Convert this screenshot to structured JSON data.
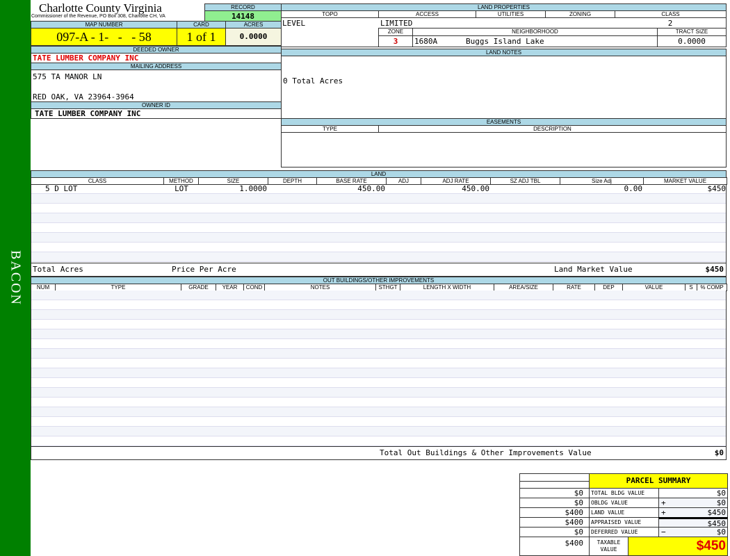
{
  "sidebar": {
    "name": "BACON",
    "color": "#008000"
  },
  "header": {
    "county": "Charlotte County Virginia",
    "subtitle": "Commissioner of the Revenue, PO Box 308, Charlotte CH, VA"
  },
  "record": {
    "label": "RECORD",
    "value": "14148"
  },
  "map": {
    "label": "MAP NUMBER",
    "value": "097-A - 1-   -   - 58",
    "card_label": "CARD",
    "card": "1 of 1",
    "acres_label": "ACRES",
    "acres": "0.0000"
  },
  "owner": {
    "deeded_label": "DEEDED OWNER",
    "deeded": "TATE LUMBER COMPANY INC",
    "mailing_label": "MAILING ADDRESS",
    "address1": "575 TA MANOR LN",
    "address2": "RED OAK, VA 23964-3964",
    "id_label": "OWNER ID",
    "id": "TATE LUMBER COMPANY INC"
  },
  "land_properties": {
    "title": "LAND PROPERTIES",
    "topo_label": "TOPO",
    "access_label": "ACCESS",
    "utilities_label": "UTILITIES",
    "zoning_label": "ZONING",
    "class_label": "CLASS",
    "topo": "LEVEL",
    "access": "LIMITED",
    "class": "2",
    "zone_label": "ZONE",
    "neighborhood_label": "NEIGHBORHOOD",
    "tract_label": "TRACT SIZE",
    "zone": "3",
    "neighborhood_code": "1680A",
    "neighborhood": "Buggs Island Lake",
    "tract": "0.0000"
  },
  "land_notes": {
    "title": "LAND NOTES",
    "text": "0 Total Acres"
  },
  "easements": {
    "title": "EASEMENTS",
    "type_label": "TYPE",
    "desc_label": "DESCRIPTION"
  },
  "land": {
    "title": "LAND",
    "columns": [
      "CLASS",
      "METHOD",
      "SIZE",
      "DEPTH",
      "BASE RATE",
      "ADJ",
      "ADJ RATE",
      "SZ ADJ TBL",
      "Size Adj",
      "MARKET VALUE"
    ],
    "rows": [
      [
        "5 D LOT",
        "LOT",
        "1.0000",
        "",
        "450.00",
        "",
        "450.00",
        "",
        "0.00",
        "$450"
      ]
    ],
    "total_acres_label": "Total Acres",
    "price_per_acre_label": "Price Per Acre",
    "market_label": "Land Market Value",
    "market_value": "$450"
  },
  "outbuildings": {
    "title": "OUT BUILDINGS/OTHER IMPROVEMENTS",
    "columns": [
      "NUM",
      "TYPE",
      "GRADE",
      "YEAR",
      "COND",
      "NOTES",
      "STHGT",
      "LENGTH X WIDTH",
      "AREA/SIZE",
      "RATE",
      "DEP",
      "VALUE",
      "S",
      "% COMP"
    ],
    "total_label": "Total Out Buildings & Other Improvements Value",
    "total": "$0"
  },
  "summary": {
    "title": "PARCEL SUMMARY",
    "rows": [
      {
        "prev": "$0",
        "label": "TOTAL BLDG VALUE",
        "op": "",
        "value": "$0"
      },
      {
        "prev": "$0",
        "label": "OBLDG VALUE",
        "op": "+",
        "value": "$0"
      },
      {
        "prev": "$400",
        "label": "LAND VALUE",
        "op": "+",
        "value": "$450"
      },
      {
        "prev": "$400",
        "label": "APPRAISED VALUE",
        "op": "",
        "value": "$450"
      },
      {
        "prev": "$0",
        "label": "DEFERRED VALUE",
        "op": "−",
        "value": "$0"
      }
    ],
    "taxable_prev": "$400",
    "taxable_label": "TAXABLE VALUE",
    "taxable": "$450"
  }
}
